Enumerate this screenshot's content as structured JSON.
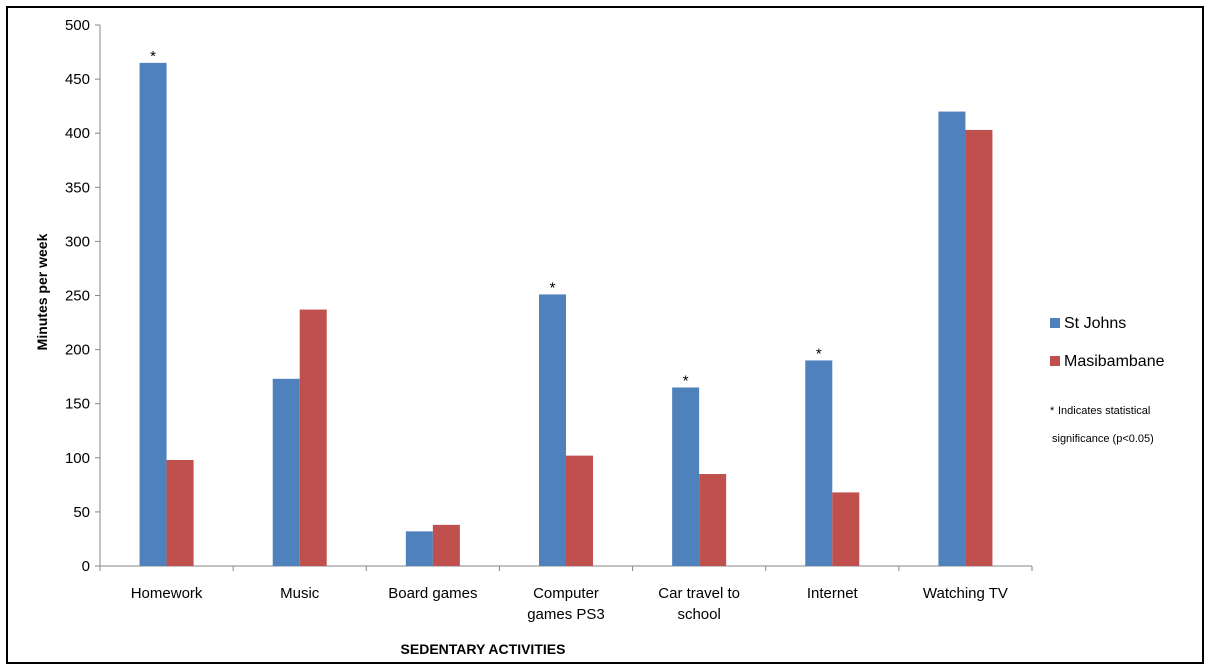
{
  "chart_data": {
    "type": "bar",
    "title": "",
    "xlabel": "SEDENTARY  ACTIVITIES",
    "ylabel": "Minutes per week",
    "ylim": [
      0,
      500
    ],
    "yticks": [
      0,
      50,
      100,
      150,
      200,
      250,
      300,
      350,
      400,
      450,
      500
    ],
    "grid": false,
    "legend_position": "right",
    "categories": [
      [
        "Homework"
      ],
      [
        "Music"
      ],
      [
        "Board games"
      ],
      [
        "Computer",
        "games PS3"
      ],
      [
        "Car travel to",
        "school"
      ],
      [
        "Internet"
      ],
      [
        "Watching TV"
      ]
    ],
    "series": [
      {
        "name": "St Johns",
        "color": "#4f81bd",
        "values": [
          465,
          173,
          32,
          251,
          165,
          190,
          420
        ]
      },
      {
        "name": "Masibambane",
        "color": "#c0504d",
        "values": [
          98,
          237,
          38,
          102,
          85,
          68,
          403
        ]
      }
    ],
    "significance_marker": "*",
    "significant": [
      true,
      false,
      false,
      true,
      true,
      true,
      false
    ],
    "note": [
      "Indicates statistical",
      "significance (p<0.05)"
    ]
  }
}
